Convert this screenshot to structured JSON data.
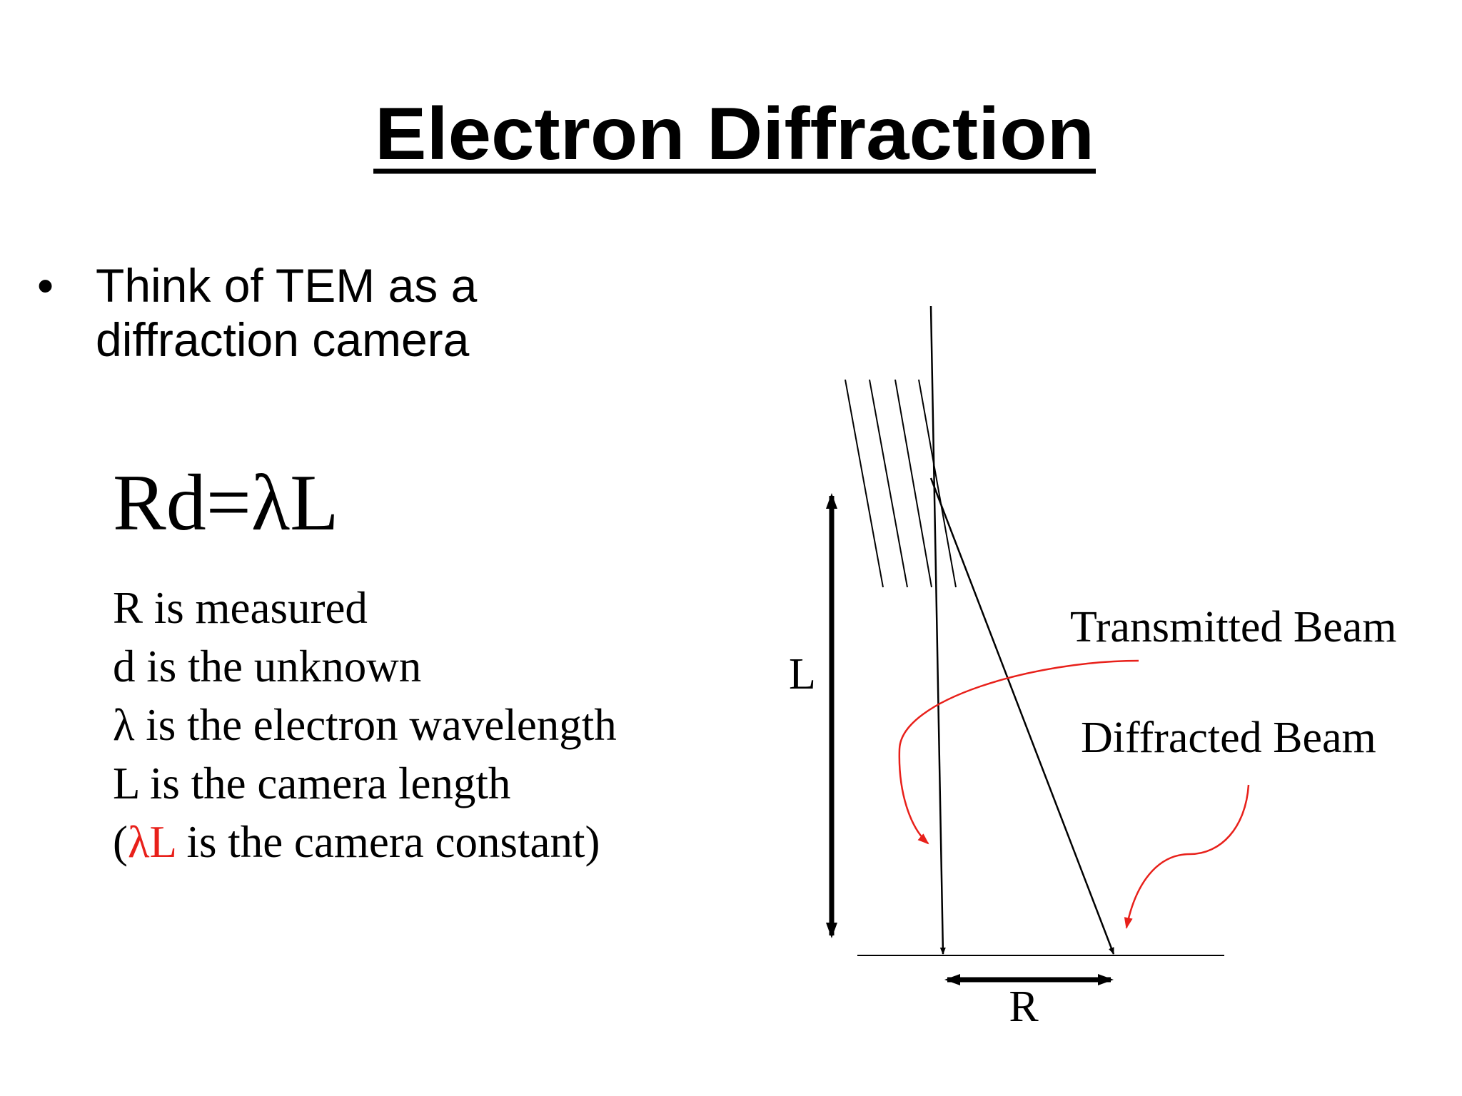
{
  "title": "Electron Diffraction",
  "bullet": "Think of TEM as a diffraction camera",
  "equation": "Rd=λL",
  "definitions": [
    "R is measured",
    "d is the unknown",
    "λ is the electron wavelength",
    "L is the camera length"
  ],
  "note": {
    "open": "(",
    "highlight": "λL",
    "rest": " is the camera constant)"
  },
  "diagram": {
    "length_label": "L",
    "radius_label": "R",
    "transmitted_label": "Transmitted Beam",
    "diffracted_label": "Diffracted Beam"
  }
}
